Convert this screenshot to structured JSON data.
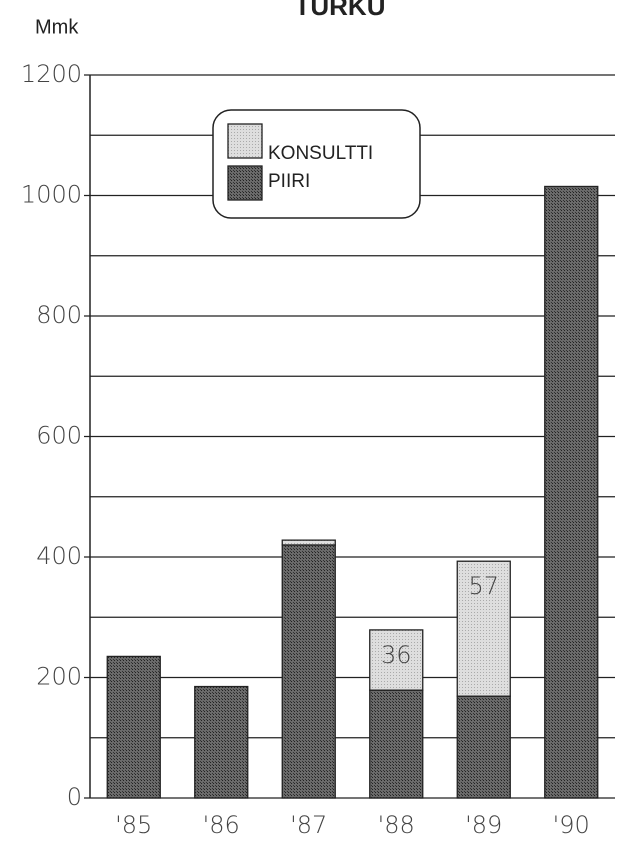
{
  "chart_data": {
    "type": "stacked_bar",
    "title": "TURKU",
    "y_label": "Mmk",
    "categories": [
      "'85",
      "'86",
      "'87",
      "'88",
      "'89",
      "'90"
    ],
    "series": [
      {
        "name": "PIIRI",
        "color": "#5a5a5a",
        "values": [
          235,
          185,
          420,
          179,
          169,
          1015
        ]
      },
      {
        "name": "KONSULTTI",
        "color": "#d8d8d8",
        "values": [
          0,
          0,
          8,
          100,
          224,
          0
        ]
      }
    ],
    "annotations": [
      {
        "category": 3,
        "text": "36"
      },
      {
        "category": 4,
        "text": "57"
      }
    ],
    "ylim": [
      0,
      1200
    ],
    "yticks": [
      0,
      200,
      400,
      600,
      800,
      1000,
      1200
    ],
    "minor_yticks": [
      100,
      300,
      500,
      700,
      900,
      1100
    ],
    "grid": true
  }
}
